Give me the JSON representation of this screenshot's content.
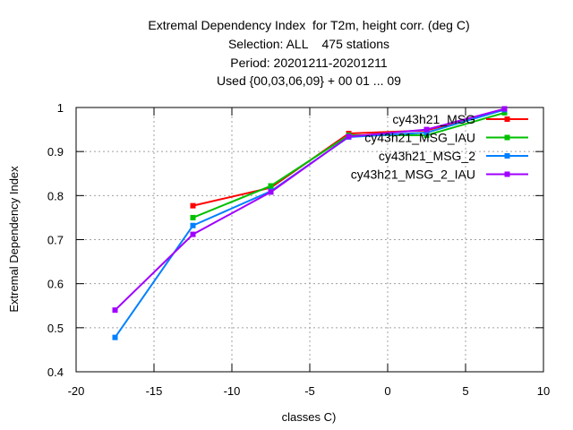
{
  "chart_data": {
    "type": "line",
    "title_lines": [
      "Extremal Dependency Index  for T2m, height corr. (deg C)",
      "Selection: ALL    475 stations",
      "Period: 20201211-20201211",
      "Used {00,03,06,09} + 00 01 ... 09"
    ],
    "xlabel": "classes C)",
    "ylabel": "Extremal Dependency Index",
    "xlim": [
      -20,
      10
    ],
    "ylim": [
      0.4,
      1.0
    ],
    "x_ticks": [
      -20,
      -15,
      -10,
      -5,
      0,
      5,
      10
    ],
    "y_ticks": [
      0.4,
      0.5,
      0.6,
      0.7,
      0.8,
      0.9,
      1.0
    ],
    "x_tick_labels": [
      "-20",
      "-15",
      "-10",
      "-5",
      "0",
      "5",
      "10"
    ],
    "y_tick_labels": [
      "0.4",
      "0.5",
      "0.6",
      "0.7",
      "0.8",
      "0.9",
      "1"
    ],
    "grid": true,
    "legend_position": "top-right",
    "series": [
      {
        "name": "cy43h21_MSG",
        "color": "#ff0000",
        "points": [
          [
            -12.5,
            0.777
          ],
          [
            -7.5,
            0.818
          ],
          [
            -2.5,
            0.941
          ],
          [
            2.5,
            0.948
          ],
          [
            7.5,
            0.995
          ]
        ]
      },
      {
        "name": "cy43h21_MSG_IAU",
        "color": "#00c000",
        "points": [
          [
            -12.5,
            0.75
          ],
          [
            -7.5,
            0.822
          ],
          [
            -2.5,
            0.937
          ],
          [
            2.5,
            0.937
          ],
          [
            7.5,
            0.988
          ]
        ]
      },
      {
        "name": "cy43h21_MSG_2",
        "color": "#0080ff",
        "points": [
          [
            -17.5,
            0.478
          ],
          [
            -12.5,
            0.732
          ],
          [
            -7.5,
            0.81
          ],
          [
            -2.5,
            0.933
          ],
          [
            2.5,
            0.943
          ],
          [
            7.5,
            0.995
          ]
        ]
      },
      {
        "name": "cy43h21_MSG_2_IAU",
        "color": "#a000ff",
        "points": [
          [
            -17.5,
            0.54
          ],
          [
            -12.5,
            0.712
          ],
          [
            -7.5,
            0.808
          ],
          [
            -2.5,
            0.934
          ],
          [
            2.5,
            0.95
          ],
          [
            7.5,
            0.997
          ]
        ]
      }
    ]
  }
}
